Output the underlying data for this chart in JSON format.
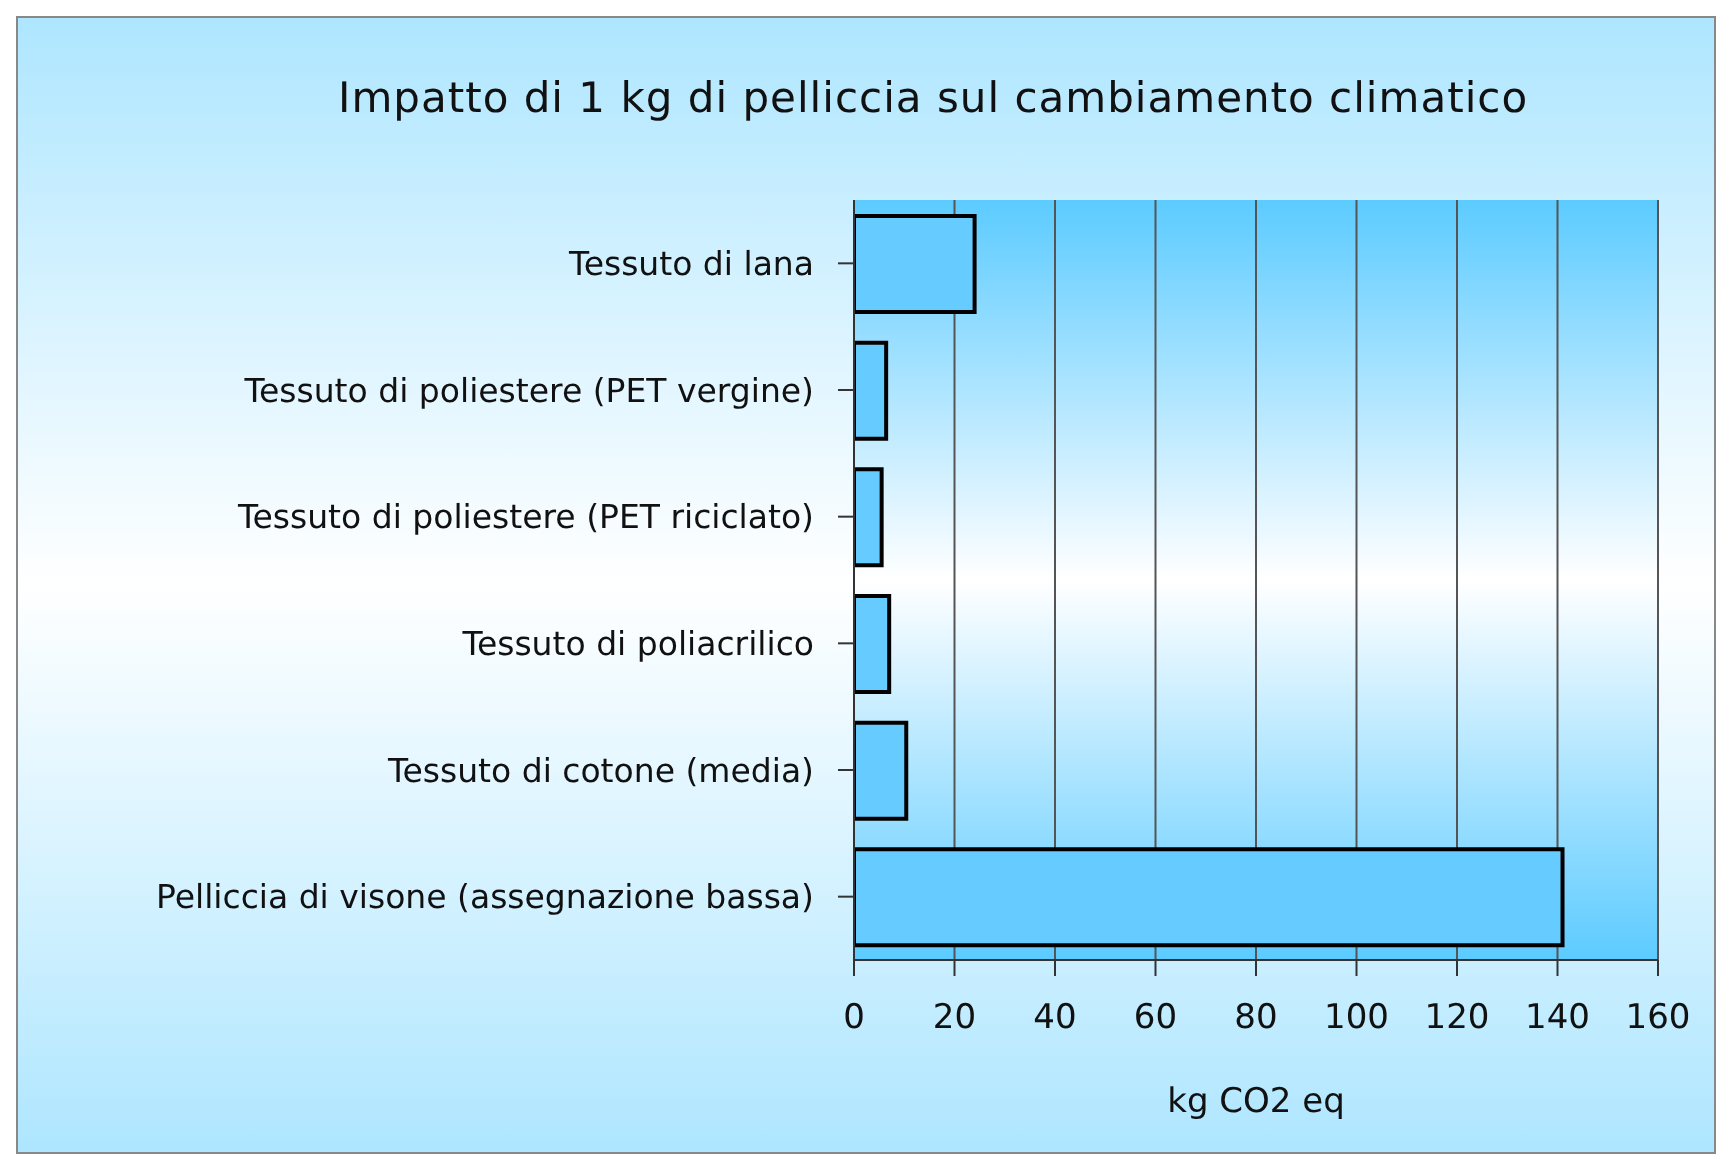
{
  "chart_data": {
    "type": "bar",
    "orientation": "horizontal",
    "title": "Impatto di 1 kg di pelliccia sul cambiamento climatico",
    "xlabel": "kg CO2 eq",
    "categories": [
      "Tessuto di lana",
      "Tessuto di poliestere (PET vergine)",
      "Tessuto di poliestere (PET riciclato)",
      "Tessuto di poliacrilico",
      "Tessuto di cotone (media)",
      "Pelliccia di visone (assegnazione bassa)"
    ],
    "values": [
      24,
      6.4,
      5.5,
      7,
      10.4,
      141
    ],
    "color": "#66ccff",
    "xlim": [
      0,
      160
    ],
    "xticks": [
      0,
      20,
      40,
      60,
      80,
      100,
      120,
      140,
      160
    ],
    "grid": "x"
  }
}
